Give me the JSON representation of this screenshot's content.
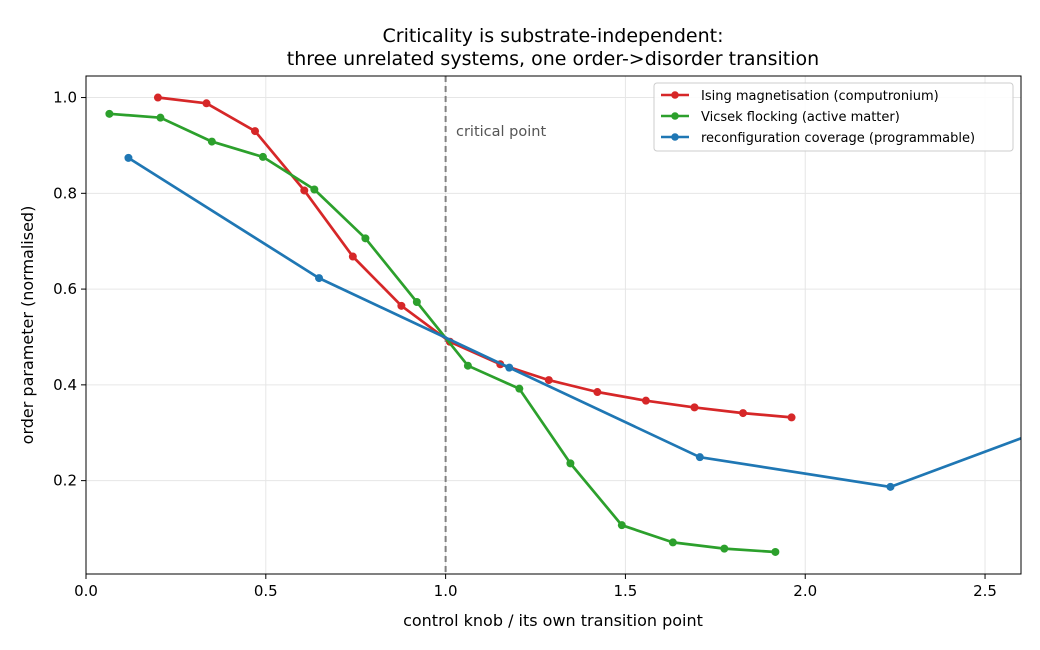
{
  "chart_data": {
    "type": "line",
    "title_lines": [
      "Criticality is substrate-independent:",
      "three unrelated systems, one order->disorder transition"
    ],
    "xlabel": "control knob / its own transition point",
    "ylabel": "order parameter (normalised)",
    "xlim": [
      0.0,
      2.6
    ],
    "ylim": [
      0.005,
      1.045
    ],
    "xticks": [
      0.0,
      0.5,
      1.0,
      1.5,
      2.0,
      2.5
    ],
    "xtick_labels": [
      "0.0",
      "0.5",
      "1.0",
      "1.5",
      "2.0",
      "2.5"
    ],
    "yticks": [
      0.2,
      0.4,
      0.6,
      0.8,
      1.0
    ],
    "ytick_labels": [
      "0.2",
      "0.4",
      "0.6",
      "0.8",
      "1.0"
    ],
    "grid": true,
    "legend_position": "top-right",
    "annotation": {
      "text": "critical point",
      "x": 1.0
    },
    "series": [
      {
        "name": "Ising magnetisation (computronium)",
        "color": "#d62728",
        "x": [
          0.2,
          0.335,
          0.47,
          0.607,
          0.742,
          0.877,
          1.012,
          1.152,
          1.287,
          1.422,
          1.557,
          1.692,
          1.827,
          1.962
        ],
        "y": [
          1.0,
          0.988,
          0.93,
          0.806,
          0.668,
          0.565,
          0.49,
          0.443,
          0.41,
          0.385,
          0.367,
          0.353,
          0.341,
          0.332
        ]
      },
      {
        "name": "Vicsek flocking (active matter)",
        "color": "#2ca02c",
        "x": [
          0.065,
          0.207,
          0.35,
          0.492,
          0.635,
          0.777,
          0.92,
          1.062,
          1.205,
          1.347,
          1.49,
          1.632,
          1.775,
          1.917
        ],
        "y": [
          0.966,
          0.958,
          0.908,
          0.876,
          0.808,
          0.706,
          0.573,
          0.44,
          0.392,
          0.236,
          0.107,
          0.071,
          0.058,
          0.051
        ]
      },
      {
        "name": "reconfiguration coverage (programmable)",
        "color": "#1f77b4",
        "x": [
          0.118,
          0.648,
          1.177,
          1.707,
          2.237,
          2.767
        ],
        "y": [
          0.874,
          0.623,
          0.436,
          0.249,
          0.187,
          0.335
        ]
      }
    ]
  }
}
